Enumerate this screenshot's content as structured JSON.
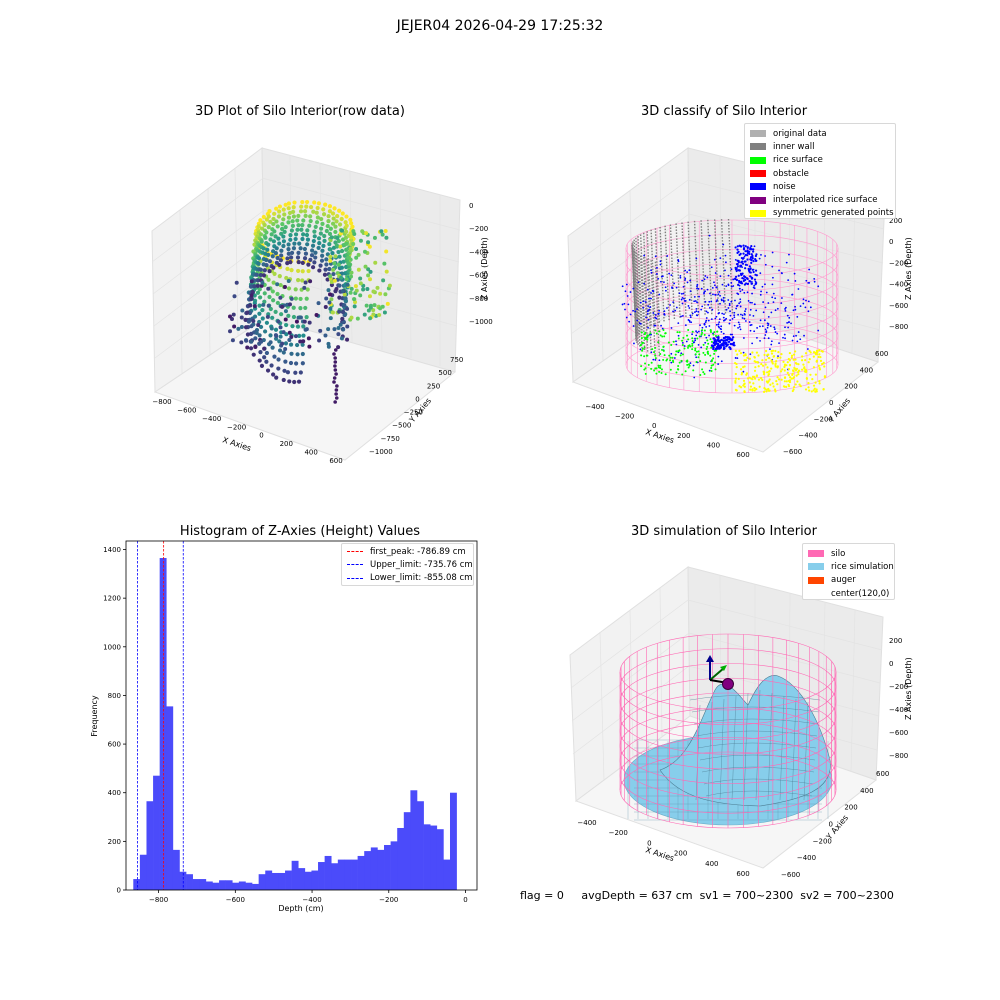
{
  "suptitle": "JEJER04 2026-04-29 17:25:32",
  "panels": {
    "raw": {
      "title": "3D Plot of Silo Interior(row data)",
      "xlabel": "X Axies",
      "ylabel": "Y Axies",
      "zlabel": "Z Axies (Depth)",
      "xticks": [
        "−800",
        "−600",
        "−400",
        "−200",
        "0",
        "200",
        "400",
        "600"
      ],
      "yticks": [
        "750",
        "500",
        "250",
        "0",
        "−250",
        "−500",
        "−750",
        "−1000"
      ],
      "zticks": [
        "0",
        "−200",
        "−400",
        "−600",
        "−800",
        "−1000"
      ]
    },
    "classify": {
      "title": "3D classify of Silo Interior",
      "xlabel": "X Axies",
      "ylabel": "Y Axies",
      "zlabel": "Z Axies (Depth)",
      "xticks": [
        "−400",
        "−200",
        "0",
        "200",
        "400",
        "600"
      ],
      "yticks": [
        "600",
        "400",
        "200",
        "0",
        "−200",
        "−400",
        "−600"
      ],
      "zticks": [
        "200",
        "0",
        "−200",
        "−400",
        "−600",
        "−800"
      ],
      "legend": [
        {
          "label": "original data",
          "color": "#b0b0b0"
        },
        {
          "label": "inner wall",
          "color": "#808080"
        },
        {
          "label": "rice surface",
          "color": "#00ff00"
        },
        {
          "label": "obstacle",
          "color": "#ff0000"
        },
        {
          "label": "noise",
          "color": "#0000ff"
        },
        {
          "label": "interpolated rice surface",
          "color": "#800080"
        },
        {
          "label": "symmetric generated points",
          "color": "#ffff00"
        }
      ]
    },
    "simulation": {
      "title": "3D simulation of Silo Interior",
      "xlabel": "X Axies",
      "ylabel": "Y Axies",
      "zlabel": "Z Axies (Depth)",
      "xticks": [
        "−400",
        "−200",
        "0",
        "200",
        "400",
        "600"
      ],
      "yticks": [
        "600",
        "400",
        "200",
        "0",
        "−200",
        "−400",
        "−600"
      ],
      "zticks": [
        "200",
        "0",
        "−200",
        "−400",
        "−600",
        "−800"
      ],
      "legend": [
        {
          "label": "silo",
          "color": "#ff69b4"
        },
        {
          "label": "rice simulation",
          "color": "#87ceeb"
        },
        {
          "label": "auger",
          "color": "#ff4500"
        },
        {
          "label": "center(120,0)",
          "color": "#ffffff"
        }
      ]
    }
  },
  "chart_data": {
    "type": "bar",
    "title": "Histogram of Z-Axies (Height) Values",
    "xlabel": "Depth (cm)",
    "ylabel": "Frequency",
    "xlim": [
      -885,
      30
    ],
    "ylim": [
      0,
      1435
    ],
    "xticks": [
      -800,
      -600,
      -400,
      -200,
      0
    ],
    "yticks": [
      0,
      200,
      400,
      600,
      800,
      1000,
      1200,
      1400
    ],
    "bar_color": "#4b4bfa",
    "bin_width": 17.2,
    "bin_start": -866,
    "values": [
      45,
      145,
      365,
      470,
      1365,
      755,
      165,
      75,
      65,
      45,
      45,
      35,
      30,
      40,
      40,
      30,
      35,
      30,
      25,
      65,
      80,
      70,
      70,
      80,
      120,
      90,
      75,
      80,
      115,
      140,
      110,
      125,
      125,
      125,
      140,
      160,
      175,
      165,
      185,
      200,
      255,
      320,
      410,
      365,
      270,
      265,
      250,
      125,
      400
    ],
    "lines": [
      {
        "label": "first_peak: -786.89 cm",
        "value": -786.89,
        "color": "#ff0000"
      },
      {
        "label": "Upper_limit: -735.76 cm",
        "value": -735.76,
        "color": "#0000ff"
      },
      {
        "label": "Lower_limit: -855.08 cm",
        "value": -855.08,
        "color": "#0000ff"
      }
    ]
  },
  "footer": {
    "flag": "flag = 0",
    "avg": "avgDepth = 637 cm",
    "sv1": "sv1 = 700~2300",
    "sv2": "sv2 = 700~2300"
  }
}
